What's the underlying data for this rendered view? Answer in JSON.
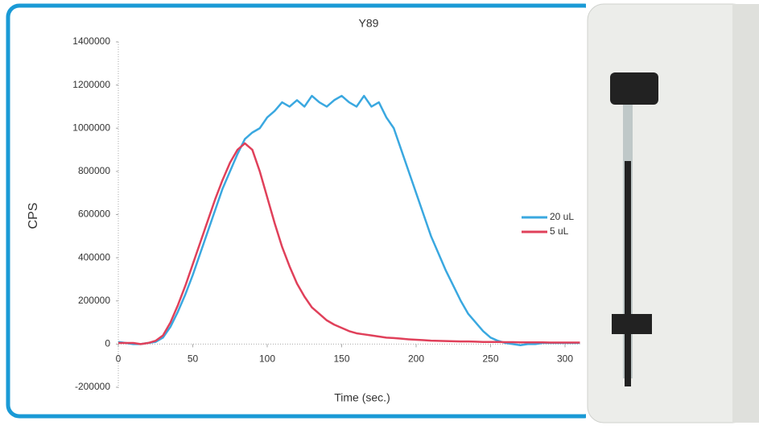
{
  "chart_data": {
    "type": "line",
    "title": "Y89",
    "xlabel": "Time (sec.)",
    "ylabel": "CPS",
    "x": [
      0,
      5,
      10,
      15,
      20,
      25,
      30,
      35,
      40,
      45,
      50,
      55,
      60,
      65,
      70,
      75,
      80,
      85,
      90,
      95,
      100,
      105,
      110,
      115,
      120,
      125,
      130,
      135,
      140,
      145,
      150,
      155,
      160,
      165,
      170,
      175,
      180,
      185,
      190,
      195,
      200,
      205,
      210,
      215,
      220,
      225,
      230,
      235,
      240,
      245,
      250,
      255,
      260,
      265,
      270,
      275,
      280,
      285,
      290,
      295,
      300,
      305,
      310
    ],
    "series": [
      {
        "name": "20 uL",
        "color": "#3aa8e0",
        "values": [
          10000,
          5000,
          0,
          0,
          5000,
          10000,
          30000,
          80000,
          150000,
          230000,
          320000,
          420000,
          520000,
          620000,
          720000,
          800000,
          880000,
          950000,
          980000,
          1000000,
          1050000,
          1080000,
          1120000,
          1100000,
          1130000,
          1100000,
          1150000,
          1120000,
          1100000,
          1130000,
          1150000,
          1120000,
          1100000,
          1150000,
          1100000,
          1120000,
          1050000,
          1000000,
          900000,
          800000,
          700000,
          600000,
          500000,
          420000,
          340000,
          270000,
          200000,
          140000,
          100000,
          60000,
          30000,
          15000,
          5000,
          0,
          -5000,
          0,
          0,
          5000,
          5000,
          5000,
          5000,
          5000,
          5000
        ]
      },
      {
        "name": "5 uL",
        "color": "#e0405a",
        "values": [
          5000,
          5000,
          5000,
          0,
          5000,
          15000,
          40000,
          100000,
          180000,
          270000,
          370000,
          470000,
          570000,
          670000,
          760000,
          840000,
          900000,
          930000,
          900000,
          800000,
          680000,
          560000,
          450000,
          360000,
          280000,
          220000,
          170000,
          140000,
          110000,
          90000,
          75000,
          60000,
          50000,
          45000,
          40000,
          35000,
          30000,
          28000,
          25000,
          22000,
          20000,
          18000,
          16000,
          15000,
          14000,
          13000,
          12000,
          12000,
          11000,
          10000,
          10000,
          10000,
          9000,
          9000,
          8000,
          8000,
          8000,
          8000,
          7000,
          7000,
          7000,
          7000,
          7000
        ]
      }
    ],
    "xlim": [
      0,
      310
    ],
    "xticks": [
      0,
      50,
      100,
      150,
      200,
      250,
      300
    ],
    "ylim": [
      -200000,
      1400000
    ],
    "yticks": [
      -200000,
      0,
      200000,
      400000,
      600000,
      800000,
      1000000,
      1200000,
      1400000
    ],
    "legend": "right"
  }
}
